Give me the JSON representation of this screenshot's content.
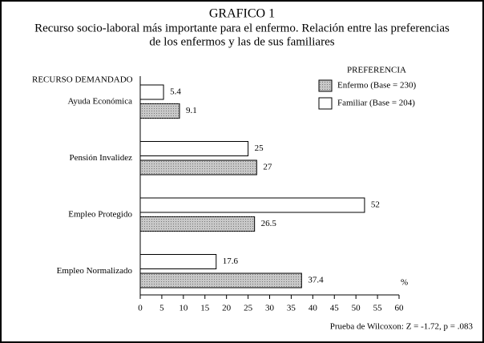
{
  "chart_data": {
    "type": "hbar",
    "title": "GRAFICO 1",
    "subtitle": [
      "Recurso socio-laboral más importante para el enfermo. Relación entre las preferencias",
      "de los enfermos y las de sus familiares"
    ],
    "ylabel": "RECURSO DEMANDADO",
    "xlabel": "%",
    "categories": [
      "Ayuda Económica",
      "Pensión Invalidez",
      "Empleo Protegido",
      "Empleo Normalizado"
    ],
    "series": [
      {
        "name": "Enfermo (Base = 230)",
        "color": "#c8c8c8",
        "values": [
          9.1,
          27,
          26.5,
          37.4
        ]
      },
      {
        "name": "Familiar (Base = 204)",
        "color": "#ffffff",
        "values": [
          5.4,
          25,
          52,
          17.6
        ]
      }
    ],
    "legend_title": "PREFERENCIA",
    "legend": "upper right",
    "xlim": [
      0,
      60
    ],
    "xticks": [
      0,
      5,
      10,
      15,
      20,
      25,
      30,
      35,
      40,
      45,
      50,
      55,
      60
    ],
    "note": "Prueba de Wilcoxon: Z = -1.72, p = .083"
  }
}
